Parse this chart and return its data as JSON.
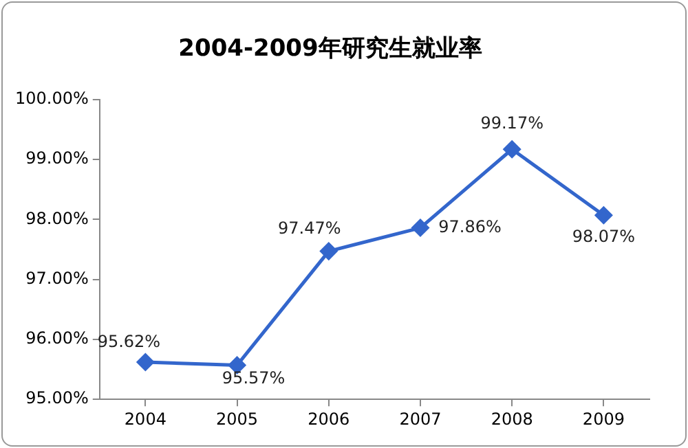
{
  "chart_data": {
    "type": "line",
    "title": "2004-2009年研究生就业率",
    "categories": [
      "2004",
      "2005",
      "2006",
      "2007",
      "2008",
      "2009"
    ],
    "series": [
      {
        "color": "#3366cc",
        "values": [
          95.62,
          95.57,
          97.47,
          97.86,
          99.17,
          98.07
        ],
        "value_labels": [
          "95.62%",
          "95.57%",
          "97.47%",
          "97.86%",
          "99.17%",
          "98.07%"
        ]
      }
    ],
    "ylim": [
      95,
      100
    ],
    "yticks": [
      {
        "value": 95,
        "label": "95.00%"
      },
      {
        "value": 96,
        "label": "96.00%"
      },
      {
        "value": 97,
        "label": "97.00%"
      },
      {
        "value": 98,
        "label": "98.00%"
      },
      {
        "value": 99,
        "label": "99.00%"
      },
      {
        "value": 100,
        "label": "100.00%"
      }
    ],
    "grid": false,
    "legend": false,
    "marker": "diamond",
    "line_style": "solid"
  }
}
